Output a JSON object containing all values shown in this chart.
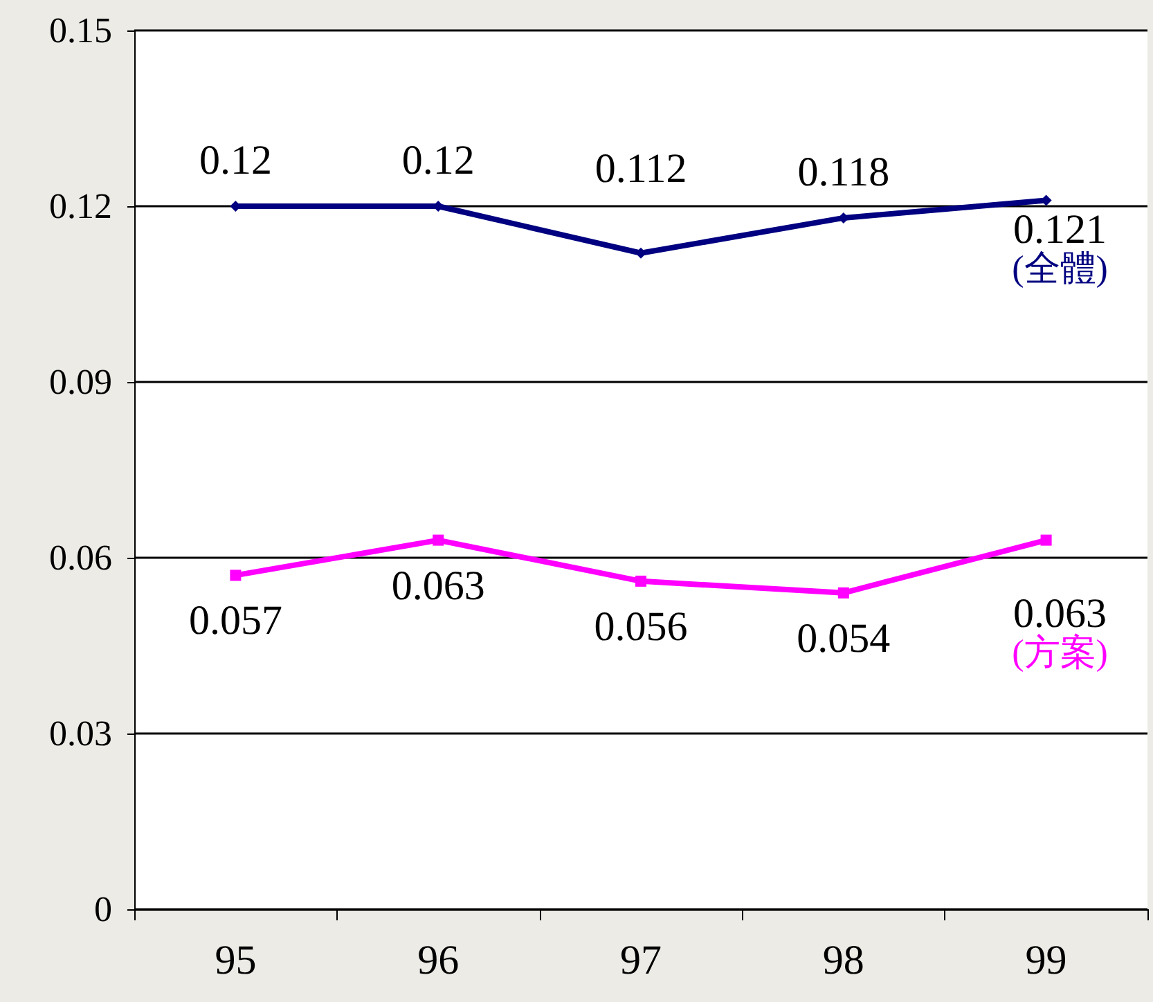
{
  "chart_data": {
    "type": "line",
    "categories": [
      "95",
      "96",
      "97",
      "98",
      "99"
    ],
    "series": [
      {
        "name": "(全體)",
        "color": "#000080",
        "marker": "diamond",
        "values": [
          0.12,
          0.12,
          0.112,
          0.118,
          0.121
        ]
      },
      {
        "name": "(方案)",
        "color": "#ff00ff",
        "marker": "square",
        "values": [
          0.057,
          0.063,
          0.056,
          0.054,
          0.063
        ]
      }
    ],
    "ylim": [
      0,
      0.15
    ],
    "yticks": [
      0,
      0.03,
      0.06,
      0.09,
      0.12,
      0.15
    ],
    "grid": "y",
    "data_labels": true,
    "legend": false,
    "line_style": "solid"
  }
}
